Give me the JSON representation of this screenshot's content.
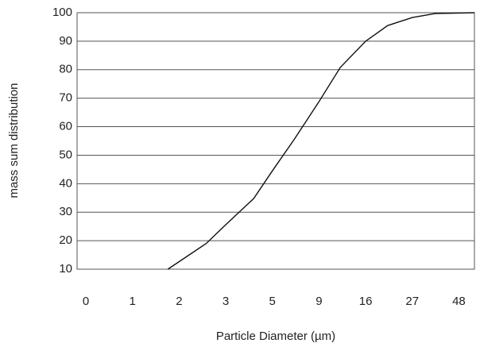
{
  "chart_data": {
    "type": "line",
    "x_label": "Particle Diameter (µm)",
    "y_label": "mass sum distribution",
    "x": [
      1.76,
      2.58,
      3,
      4.2,
      5,
      6.9,
      9,
      12.2,
      16,
      21.2,
      27,
      37.3,
      55
    ],
    "values": [
      10,
      19,
      25.6,
      34.8,
      44.5,
      55.7,
      68.8,
      80.8,
      90,
      95.5,
      98.3,
      99.7,
      100
    ],
    "color": "#111111",
    "xlim": [
      0,
      55
    ],
    "xticks": [
      0,
      1,
      2,
      3,
      5,
      9,
      16,
      27,
      48
    ],
    "ylim": [
      10,
      100
    ],
    "yticks": [
      10,
      20,
      30,
      40,
      50,
      60,
      70,
      80,
      90,
      100
    ],
    "grid": true
  }
}
